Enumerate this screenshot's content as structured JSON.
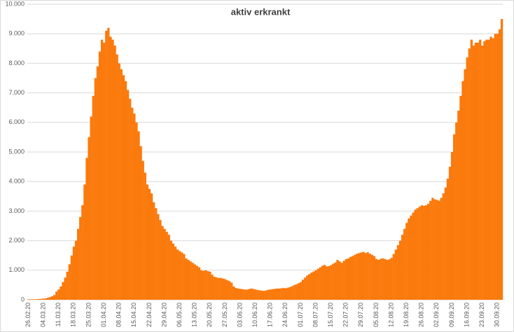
{
  "chart_data": {
    "type": "bar",
    "title": "aktiv erkrankt",
    "color": "#fb7a0d",
    "grid": true,
    "ylim": [
      0,
      10000
    ],
    "yticks": [
      {
        "value": 0,
        "label": "0"
      },
      {
        "value": 1000,
        "label": "1.000"
      },
      {
        "value": 2000,
        "label": "2.000"
      },
      {
        "value": 3000,
        "label": "3.000"
      },
      {
        "value": 4000,
        "label": "4.000"
      },
      {
        "value": 5000,
        "label": "5.000"
      },
      {
        "value": 6000,
        "label": "6.000"
      },
      {
        "value": 7000,
        "label": "7.000"
      },
      {
        "value": 8000,
        "label": "8.000"
      },
      {
        "value": 9000,
        "label": "9.000"
      },
      {
        "value": 10000,
        "label": "10.000"
      }
    ],
    "categories": [
      "26.02.20",
      null,
      null,
      null,
      null,
      null,
      null,
      "04.03.20",
      null,
      null,
      null,
      null,
      null,
      null,
      "11.03.20",
      null,
      null,
      null,
      null,
      null,
      null,
      "18.03.20",
      null,
      null,
      null,
      null,
      null,
      null,
      "25.03.20",
      null,
      null,
      null,
      null,
      null,
      null,
      "01.04.20",
      null,
      null,
      null,
      null,
      null,
      null,
      "08.04.20",
      null,
      null,
      null,
      null,
      null,
      null,
      "15.04.20",
      null,
      null,
      null,
      null,
      null,
      null,
      "22.04.20",
      null,
      null,
      null,
      null,
      null,
      null,
      "29.04.20",
      null,
      null,
      null,
      null,
      null,
      null,
      "06.05.20",
      null,
      null,
      null,
      null,
      null,
      null,
      "13.05.20",
      null,
      null,
      null,
      null,
      null,
      null,
      "20.05.20",
      null,
      null,
      null,
      null,
      null,
      null,
      "27.05.20",
      null,
      null,
      null,
      null,
      null,
      null,
      "03.06.20",
      null,
      null,
      null,
      null,
      null,
      null,
      "10.06.20",
      null,
      null,
      null,
      null,
      null,
      null,
      "17.06.20",
      null,
      null,
      null,
      null,
      null,
      null,
      "24.06.20",
      null,
      null,
      null,
      null,
      null,
      null,
      "01.07.20",
      null,
      null,
      null,
      null,
      null,
      null,
      "08.07.20",
      null,
      null,
      null,
      null,
      null,
      null,
      "15.07.20",
      null,
      null,
      null,
      null,
      null,
      null,
      "22.07.20",
      null,
      null,
      null,
      null,
      null,
      null,
      "29.07.20",
      null,
      null,
      null,
      null,
      null,
      null,
      "05.08.20",
      null,
      null,
      null,
      null,
      null,
      null,
      "12.08.20",
      null,
      null,
      null,
      null,
      null,
      null,
      "19.08.20",
      null,
      null,
      null,
      null,
      null,
      null,
      "26.08.20",
      null,
      null,
      null,
      null,
      null,
      null,
      "02.09.20",
      null,
      null,
      null,
      null,
      null,
      null,
      "09.09.20",
      null,
      null,
      null,
      null,
      null,
      null,
      "16.09.20",
      null,
      null,
      null,
      null,
      null,
      null,
      "23.09.20",
      null,
      null,
      null,
      null,
      null,
      null,
      "30.09.20",
      null,
      null
    ],
    "values": [
      16,
      16,
      18,
      18,
      20,
      25,
      30,
      40,
      50,
      70,
      90,
      120,
      160,
      280,
      350,
      450,
      600,
      750,
      950,
      1200,
      1500,
      1800,
      2000,
      2400,
      2800,
      3200,
      3900,
      4800,
      5500,
      6200,
      6900,
      7500,
      7900,
      8400,
      8800,
      8700,
      9100,
      9200,
      8900,
      8800,
      8600,
      8300,
      8000,
      7800,
      7600,
      7400,
      7100,
      6800,
      6500,
      6300,
      6000,
      5700,
      5200,
      4700,
      4300,
      3900,
      3750,
      3600,
      3300,
      3100,
      2900,
      2700,
      2500,
      2400,
      2300,
      2200,
      2000,
      1900,
      1800,
      1700,
      1650,
      1600,
      1550,
      1400,
      1350,
      1300,
      1250,
      1200,
      1150,
      1100,
      1000,
      980,
      1000,
      970,
      950,
      850,
      780,
      760,
      740,
      740,
      720,
      700,
      660,
      630,
      580,
      450,
      400,
      380,
      370,
      360,
      350,
      340,
      360,
      380,
      370,
      350,
      330,
      320,
      310,
      300,
      320,
      340,
      350,
      360,
      370,
      380,
      380,
      390,
      400,
      390,
      410,
      430,
      460,
      500,
      520,
      560,
      600,
      680,
      750,
      820,
      870,
      920,
      960,
      1000,
      1050,
      1100,
      1150,
      1180,
      1130,
      1140,
      1170,
      1220,
      1260,
      1350,
      1300,
      1250,
      1320,
      1380,
      1400,
      1450,
      1480,
      1520,
      1560,
      1580,
      1600,
      1620,
      1580,
      1610,
      1560,
      1520,
      1480,
      1380,
      1350,
      1390,
      1400,
      1380,
      1350,
      1370,
      1420,
      1550,
      1700,
      1850,
      2000,
      2200,
      2400,
      2600,
      2750,
      2850,
      2950,
      3050,
      3100,
      3150,
      3200,
      3180,
      3200,
      3250,
      3350,
      3450,
      3400,
      3380,
      3350,
      3450,
      3600,
      3800,
      4100,
      4500,
      5000,
      5600,
      6000,
      6400,
      6900,
      7400,
      7800,
      8200,
      8500,
      8800,
      8600,
      8700,
      8700,
      8800,
      8600,
      8750,
      8800,
      8800,
      8900,
      8850,
      9000,
      9000,
      9150,
      9500
    ]
  }
}
